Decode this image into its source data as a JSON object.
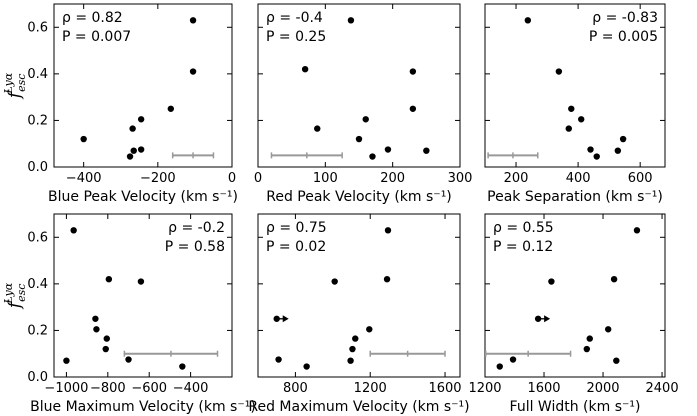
{
  "figure": {
    "ylabel": {
      "main": "f",
      "sub": "esc",
      "sup": "Lyα"
    }
  },
  "chart_data": [
    {
      "type": "scatter",
      "xlabel": "Blue Peak Velocity (km s⁻¹)",
      "xlim": [
        -480,
        0
      ],
      "ylim": [
        0,
        0.7
      ],
      "xticks": [
        -400,
        -200,
        0
      ],
      "xtick_labels": [
        "−400",
        "−200",
        "0"
      ],
      "yticks": [
        0.0,
        0.2,
        0.4,
        0.6
      ],
      "ytick_labels": [
        "0.0",
        "0.2",
        "0.4",
        "0.6"
      ],
      "annotation": {
        "rho": "ρ = 0.82",
        "p": "P = 0.007",
        "position": "top-left"
      },
      "points": [
        {
          "x": -400,
          "y": 0.12
        },
        {
          "x": -275,
          "y": 0.045
        },
        {
          "x": -268,
          "y": 0.165
        },
        {
          "x": -265,
          "y": 0.07
        },
        {
          "x": -245,
          "y": 0.205
        },
        {
          "x": -245,
          "y": 0.075
        },
        {
          "x": -165,
          "y": 0.25
        },
        {
          "x": -105,
          "y": 0.41
        },
        {
          "x": -105,
          "y": 0.63
        }
      ],
      "error_bar": {
        "x_start": -160,
        "x_end": -50,
        "y": 0.05
      }
    },
    {
      "type": "scatter",
      "xlabel": "Red Peak Velocity (km s⁻¹)",
      "xlim": [
        0,
        300
      ],
      "ylim": [
        0,
        0.7
      ],
      "xticks": [
        0,
        100,
        200,
        300
      ],
      "xtick_labels": [
        "0",
        "100",
        "200",
        "300"
      ],
      "yticks": [
        0.0,
        0.2,
        0.4,
        0.6
      ],
      "ytick_labels": [
        "",
        "",
        "",
        ""
      ],
      "annotation": {
        "rho": "ρ = -0.4",
        "p": "P = 0.25",
        "position": "top-left"
      },
      "points": [
        {
          "x": 70,
          "y": 0.42
        },
        {
          "x": 88,
          "y": 0.165
        },
        {
          "x": 138,
          "y": 0.63
        },
        {
          "x": 150,
          "y": 0.12
        },
        {
          "x": 160,
          "y": 0.205
        },
        {
          "x": 170,
          "y": 0.045
        },
        {
          "x": 193,
          "y": 0.075
        },
        {
          "x": 230,
          "y": 0.41
        },
        {
          "x": 230,
          "y": 0.25
        },
        {
          "x": 250,
          "y": 0.07
        }
      ],
      "error_bar": {
        "x_start": 20,
        "x_end": 125,
        "y": 0.05
      }
    },
    {
      "type": "scatter",
      "xlabel": "Peak Separation (km s⁻¹)",
      "xlim": [
        100,
        680
      ],
      "ylim": [
        0,
        0.7
      ],
      "xticks": [
        200,
        400,
        600
      ],
      "xtick_labels": [
        "200",
        "400",
        "600"
      ],
      "yticks": [
        0.0,
        0.2,
        0.4,
        0.6
      ],
      "ytick_labels": [
        "",
        "",
        "",
        ""
      ],
      "annotation": {
        "rho": "ρ = -0.83",
        "p": "P = 0.005",
        "position": "top-right"
      },
      "points": [
        {
          "x": 238,
          "y": 0.63
        },
        {
          "x": 338,
          "y": 0.41
        },
        {
          "x": 378,
          "y": 0.25
        },
        {
          "x": 370,
          "y": 0.165
        },
        {
          "x": 410,
          "y": 0.205
        },
        {
          "x": 440,
          "y": 0.075
        },
        {
          "x": 460,
          "y": 0.045
        },
        {
          "x": 528,
          "y": 0.07
        },
        {
          "x": 545,
          "y": 0.12
        }
      ],
      "error_bar": {
        "x_start": 110,
        "x_end": 270,
        "y": 0.05
      }
    },
    {
      "type": "scatter",
      "xlabel": "Blue Maximum Velocity (km s⁻¹)",
      "xlim": [
        -1060,
        -200
      ],
      "ylim": [
        0,
        0.7
      ],
      "xticks": [
        -1000,
        -800,
        -600,
        -400
      ],
      "xtick_labels": [
        "−1000",
        "−800",
        "−600",
        "−400"
      ],
      "yticks": [
        0.0,
        0.2,
        0.4,
        0.6
      ],
      "ytick_labels": [
        "0.0",
        "0.2",
        "0.4",
        "0.6"
      ],
      "annotation": {
        "rho": "ρ = -0.2",
        "p": "P = 0.58",
        "position": "top-right"
      },
      "points": [
        {
          "x": -1000,
          "y": 0.07
        },
        {
          "x": -965,
          "y": 0.63
        },
        {
          "x": -860,
          "y": 0.25
        },
        {
          "x": -855,
          "y": 0.205
        },
        {
          "x": -805,
          "y": 0.165
        },
        {
          "x": -810,
          "y": 0.12
        },
        {
          "x": -795,
          "y": 0.42
        },
        {
          "x": -700,
          "y": 0.075
        },
        {
          "x": -640,
          "y": 0.41
        },
        {
          "x": -440,
          "y": 0.045
        }
      ],
      "error_bar": {
        "x_start": -720,
        "x_end": -270,
        "y": 0.1
      }
    },
    {
      "type": "scatter",
      "xlabel": "Red Maximum Velocity (km s⁻¹)",
      "xlim": [
        600,
        1680
      ],
      "ylim": [
        0,
        0.7
      ],
      "xticks": [
        800,
        1200,
        1600
      ],
      "xtick_labels": [
        "800",
        "1200",
        "1600"
      ],
      "yticks": [
        0.0,
        0.2,
        0.4,
        0.6
      ],
      "ytick_labels": [
        "",
        "",
        "",
        ""
      ],
      "annotation": {
        "rho": "ρ = 0.75",
        "p": "P = 0.02",
        "position": "top-left"
      },
      "points": [
        {
          "x": 700,
          "y": 0.25,
          "lower_limit": true
        },
        {
          "x": 710,
          "y": 0.075
        },
        {
          "x": 860,
          "y": 0.045
        },
        {
          "x": 1010,
          "y": 0.41
        },
        {
          "x": 1095,
          "y": 0.07
        },
        {
          "x": 1105,
          "y": 0.12
        },
        {
          "x": 1120,
          "y": 0.165
        },
        {
          "x": 1195,
          "y": 0.205
        },
        {
          "x": 1290,
          "y": 0.42
        },
        {
          "x": 1295,
          "y": 0.63
        }
      ],
      "error_bar": {
        "x_start": 1200,
        "x_end": 1600,
        "y": 0.1
      }
    },
    {
      "type": "scatter",
      "xlabel": "Full Width (km s⁻¹)",
      "xlim": [
        1200,
        2420
      ],
      "ylim": [
        0,
        0.7
      ],
      "xticks": [
        1200,
        1600,
        2000,
        2400
      ],
      "xtick_labels": [
        "1200",
        "1600",
        "2000",
        "2400"
      ],
      "yticks": [
        0.0,
        0.2,
        0.4,
        0.6
      ],
      "ytick_labels": [
        "",
        "",
        "",
        ""
      ],
      "annotation": {
        "rho": "ρ = 0.55",
        "p": "P = 0.12",
        "position": "top-left"
      },
      "points": [
        {
          "x": 1300,
          "y": 0.045
        },
        {
          "x": 1390,
          "y": 0.075
        },
        {
          "x": 1560,
          "y": 0.25,
          "lower_limit": true
        },
        {
          "x": 1650,
          "y": 0.41
        },
        {
          "x": 1890,
          "y": 0.12
        },
        {
          "x": 1910,
          "y": 0.165
        },
        {
          "x": 2035,
          "y": 0.205
        },
        {
          "x": 2075,
          "y": 0.42
        },
        {
          "x": 2090,
          "y": 0.07
        },
        {
          "x": 2230,
          "y": 0.63
        }
      ],
      "error_bar": {
        "x_start": 1205,
        "x_end": 1780,
        "y": 0.1
      }
    }
  ]
}
